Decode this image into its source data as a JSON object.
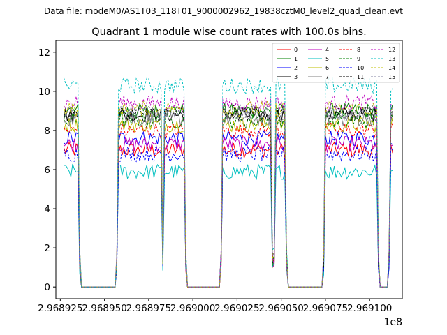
{
  "figure": {
    "suptitle": "Data file: modeM0/AS1T03_118T01_9000002962_19838cztM0_level2_quad_clean.evt"
  },
  "chart_data": {
    "type": "line",
    "title": "Quadrant 1 module wise count rates with 100.0s bins.",
    "xlabel": "",
    "ylabel": "",
    "x_offset_label": "1e8",
    "xlim": [
      2.9689225,
      2.9691185
    ],
    "ylim": [
      -0.6,
      12.6
    ],
    "x_ticks": [
      2.968925,
      2.96895,
      2.968975,
      2.969,
      2.969025,
      2.96905,
      2.969075,
      2.9691
    ],
    "x_tick_labels": [
      "2.968925",
      "2.968950",
      "2.968975",
      "2.969000",
      "2.969025",
      "2.969050",
      "2.969075",
      "2.969100"
    ],
    "y_ticks": [
      0,
      2,
      4,
      6,
      8,
      10,
      12
    ],
    "y_tick_labels": [
      "0",
      "2",
      "4",
      "6",
      "8",
      "10",
      "12"
    ],
    "grid": false,
    "legend_position": "top-right",
    "segments": [
      {
        "start": 2.968927,
        "end": 2.968935
      },
      {
        "start": 2.968958,
        "end": 2.968982
      },
      {
        "start": 2.968984,
        "end": 2.968995
      },
      {
        "start": 2.969017,
        "end": 2.969044
      },
      {
        "start": 2.969047,
        "end": 2.969052
      },
      {
        "start": 2.969075,
        "end": 2.969104
      },
      {
        "start": 2.969112,
        "end": 2.969113
      }
    ],
    "series": [
      {
        "name": "0",
        "color": "#ff0000",
        "dash": false,
        "level": 7.0
      },
      {
        "name": "1",
        "color": "#008000",
        "dash": false,
        "level": 9.0
      },
      {
        "name": "2",
        "color": "#0000ff",
        "dash": false,
        "level": 7.6
      },
      {
        "name": "3",
        "color": "#000000",
        "dash": false,
        "level": 8.8
      },
      {
        "name": "4",
        "color": "#bf00bf",
        "dash": false,
        "level": 7.3
      },
      {
        "name": "5",
        "color": "#00bfbf",
        "dash": false,
        "level": 5.9
      },
      {
        "name": "6",
        "color": "#bfbf00",
        "dash": false,
        "level": 8.3
      },
      {
        "name": "7",
        "color": "#808080",
        "dash": false,
        "level": 8.6
      },
      {
        "name": "8",
        "color": "#ff0000",
        "dash": true,
        "level": 8.0
      },
      {
        "name": "9",
        "color": "#008000",
        "dash": true,
        "level": 8.5
      },
      {
        "name": "10",
        "color": "#0000ff",
        "dash": true,
        "level": 6.8
      },
      {
        "name": "11",
        "color": "#000000",
        "dash": true,
        "level": 8.9
      },
      {
        "name": "12",
        "color": "#bf00bf",
        "dash": true,
        "level": 9.4
      },
      {
        "name": "13",
        "color": "#00bfbf",
        "dash": true,
        "level": 10.3
      },
      {
        "name": "14",
        "color": "#bfbf00",
        "dash": true,
        "level": 9.1
      },
      {
        "name": "15",
        "color": "#8080a0",
        "dash": true,
        "level": 8.9
      }
    ]
  }
}
